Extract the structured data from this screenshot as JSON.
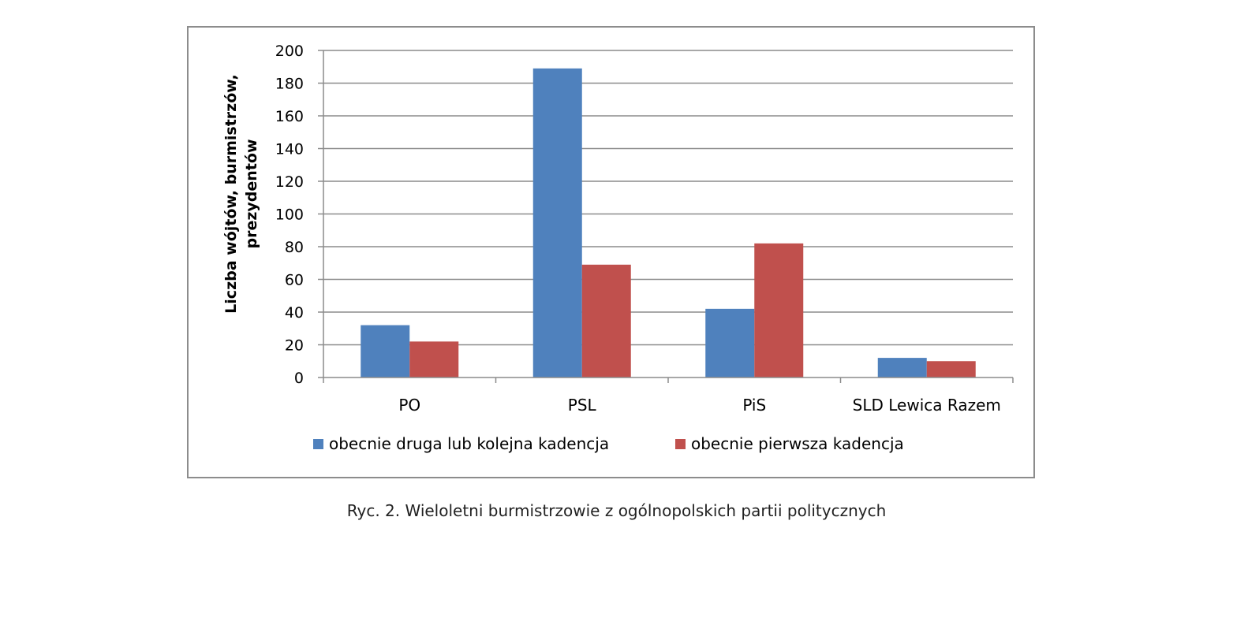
{
  "caption": "Ryc. 2. Wieloletni burmistrzowie z ogólnopolskich partii politycznych",
  "chart_data": {
    "type": "bar",
    "title": "",
    "xlabel": "",
    "ylabel_lines": [
      "Liczba wójtów, burmistrzów,",
      "prezydentów"
    ],
    "categories": [
      "PO",
      "PSL",
      "PiS",
      "SLD Lewica Razem"
    ],
    "series": [
      {
        "name": "obecnie druga lub kolejna kadencja",
        "values": [
          32,
          189,
          42,
          12
        ],
        "color": "#4f81bd"
      },
      {
        "name": "obecnie pierwsza kadencja",
        "values": [
          22,
          69,
          82,
          10
        ],
        "color": "#c0504d"
      }
    ],
    "ylim": [
      0,
      200
    ],
    "yticks": [
      0,
      20,
      40,
      60,
      80,
      100,
      120,
      140,
      160,
      180,
      200
    ],
    "grid": true,
    "legend": "bottom"
  }
}
